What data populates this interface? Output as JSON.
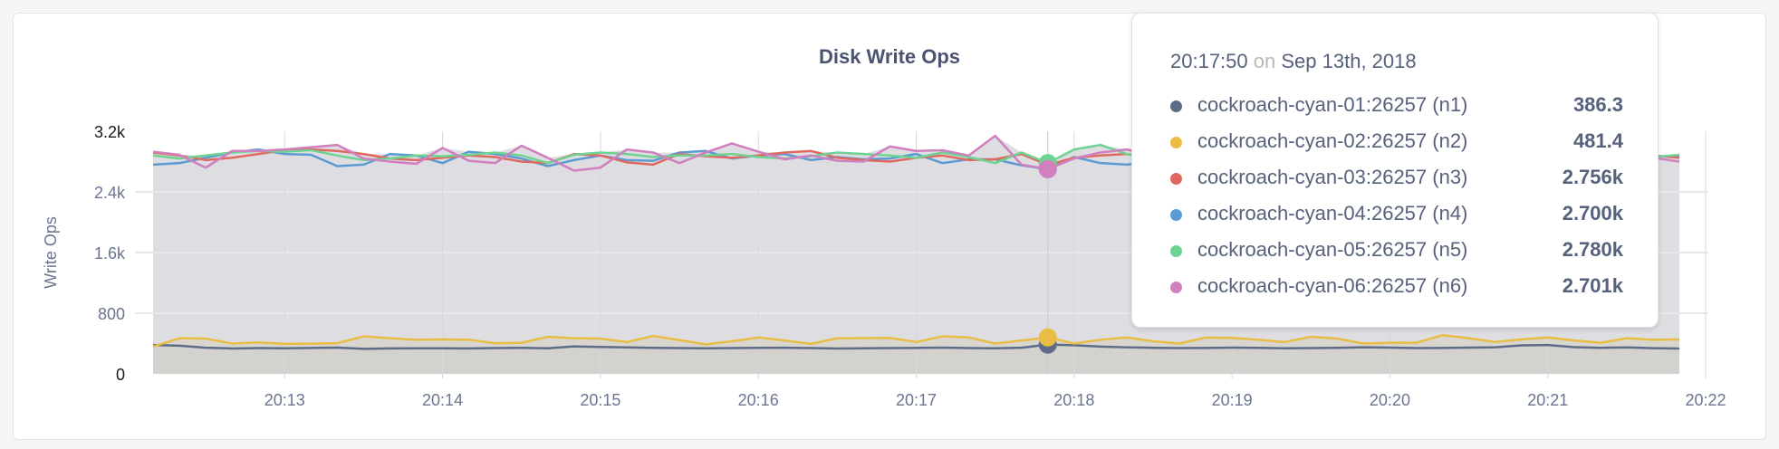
{
  "chart_data": {
    "type": "line",
    "title": "Disk Write Ops",
    "ylabel": "Write Ops",
    "xlabel": "",
    "ylim": [
      0,
      3200
    ],
    "yticks": [
      "0",
      "800",
      "1.6k",
      "2.4k",
      "3.2k"
    ],
    "ytick_values": [
      0,
      800,
      1600,
      2400,
      3200
    ],
    "xlim": [
      "20:12:10",
      "20:21:50"
    ],
    "xticks": [
      "20:13",
      "20:14",
      "20:15",
      "20:16",
      "20:17",
      "20:18",
      "20:19",
      "20:20",
      "20:21",
      "20:22"
    ],
    "grid": true,
    "x": [
      "20:12:10",
      "20:12:20",
      "20:12:30",
      "20:12:40",
      "20:12:50",
      "20:13:00",
      "20:13:10",
      "20:13:20",
      "20:13:30",
      "20:13:40",
      "20:13:50",
      "20:14:00",
      "20:14:10",
      "20:14:20",
      "20:14:30",
      "20:14:40",
      "20:14:50",
      "20:15:00",
      "20:15:10",
      "20:15:20",
      "20:15:30",
      "20:15:40",
      "20:15:50",
      "20:16:00",
      "20:16:10",
      "20:16:20",
      "20:16:30",
      "20:16:40",
      "20:16:50",
      "20:17:00",
      "20:17:10",
      "20:17:20",
      "20:17:30",
      "20:17:40",
      "20:17:50",
      "20:18:00",
      "20:18:10",
      "20:18:20",
      "20:18:30",
      "20:18:40",
      "20:18:50",
      "20:19:00",
      "20:19:10",
      "20:19:20",
      "20:19:30",
      "20:19:40",
      "20:19:50",
      "20:20:00",
      "20:20:10",
      "20:20:20",
      "20:20:30",
      "20:20:40",
      "20:20:50",
      "20:21:00",
      "20:21:10",
      "20:21:20",
      "20:21:30",
      "20:21:40",
      "20:21:50"
    ],
    "series": [
      {
        "name": "cockroach-cyan-01:26257 (n1)",
        "color": "#5f6c87",
        "values": [
          380,
          372,
          345,
          335,
          340,
          338,
          342,
          346,
          330,
          336,
          338,
          337,
          336,
          341,
          343,
          338,
          362,
          355,
          349,
          344,
          340,
          337,
          341,
          343,
          345,
          340,
          334,
          338,
          341,
          342,
          346,
          340,
          338,
          345,
          386,
          378,
          360,
          350,
          344,
          340,
          342,
          346,
          344,
          338,
          341,
          343,
          351,
          346,
          340,
          342,
          346,
          351,
          376,
          381,
          352,
          344,
          349,
          339,
          334
        ]
      },
      {
        "name": "cockroach-cyan-02:26257 (n2)",
        "color": "#e9bd43",
        "values": [
          360,
          470,
          465,
          400,
          415,
          395,
          398,
          405,
          495,
          470,
          450,
          455,
          450,
          405,
          410,
          490,
          470,
          465,
          420,
          500,
          445,
          390,
          430,
          480,
          440,
          395,
          470,
          472,
          475,
          420,
          495,
          480,
          400,
          440,
          481,
          400,
          450,
          480,
          430,
          400,
          480,
          475,
          450,
          420,
          490,
          465,
          400,
          410,
          410,
          510,
          470,
          420,
          455,
          480,
          440,
          410,
          470,
          450,
          455
        ]
      },
      {
        "name": "cockroach-cyan-03:26257 (n3)",
        "color": "#e0685f",
        "values": [
          2920,
          2880,
          2820,
          2850,
          2900,
          2950,
          2960,
          2940,
          2900,
          2840,
          2820,
          2850,
          2880,
          2860,
          2800,
          2780,
          2900,
          2880,
          2790,
          2760,
          2900,
          2870,
          2850,
          2880,
          2920,
          2940,
          2850,
          2820,
          2800,
          2850,
          2880,
          2820,
          2830,
          2900,
          2756,
          2850,
          2880,
          2900,
          2840,
          2880,
          2860,
          2900,
          2880,
          2850,
          2870,
          2880,
          2860,
          2840,
          2870,
          2880,
          2850,
          2880,
          2860,
          2870,
          2850,
          2880,
          2890,
          2880,
          2850
        ]
      },
      {
        "name": "cockroach-cyan-04:26257 (n4)",
        "color": "#5c9bd1",
        "values": [
          2760,
          2780,
          2850,
          2920,
          2960,
          2900,
          2890,
          2740,
          2760,
          2900,
          2880,
          2780,
          2930,
          2900,
          2840,
          2740,
          2820,
          2880,
          2820,
          2810,
          2920,
          2940,
          2840,
          2880,
          2900,
          2820,
          2860,
          2830,
          2840,
          2900,
          2780,
          2830,
          2830,
          2750,
          2700,
          2860,
          2780,
          2760,
          2800,
          2820,
          2880,
          2850,
          2790,
          2840,
          2870,
          2860,
          2820,
          2880,
          2840,
          2850,
          2860,
          2880,
          2840,
          2850,
          2870,
          2880,
          2870,
          2860,
          2880
        ]
      },
      {
        "name": "cockroach-cyan-05:26257 (n5)",
        "color": "#6ed392",
        "values": [
          2880,
          2840,
          2880,
          2920,
          2940,
          2930,
          2950,
          2880,
          2820,
          2840,
          2880,
          2870,
          2890,
          2920,
          2880,
          2780,
          2890,
          2920,
          2900,
          2860,
          2880,
          2880,
          2900,
          2860,
          2840,
          2870,
          2920,
          2900,
          2880,
          2850,
          2920,
          2860,
          2780,
          2920,
          2780,
          2960,
          3020,
          2900,
          2840,
          2880,
          2900,
          2880,
          2860,
          2890,
          2870,
          2880,
          2850,
          2890,
          2860,
          2880,
          2870,
          2890,
          2850,
          2860,
          2880,
          2870,
          2850,
          2860,
          2890
        ]
      },
      {
        "name": "cockroach-cyan-06:26257 (n6)",
        "color": "#d07fbf",
        "values": [
          2930,
          2890,
          2720,
          2940,
          2940,
          2960,
          2990,
          3020,
          2840,
          2800,
          2770,
          2980,
          2810,
          2780,
          3010,
          2850,
          2680,
          2720,
          2960,
          2920,
          2780,
          2920,
          3040,
          2930,
          2830,
          2880,
          2810,
          2800,
          3000,
          2940,
          2950,
          2880,
          3140,
          2760,
          2701,
          2840,
          2920,
          2960,
          2880,
          2900,
          2880,
          2920,
          2860,
          2840,
          2900,
          2880,
          2870,
          2900,
          2850,
          2880,
          2860,
          2900,
          2870,
          2880,
          2860,
          2890,
          2870,
          2850,
          2800
        ]
      }
    ],
    "tooltip": {
      "time": "20:17:50",
      "on": "on",
      "date": "Sep 13th, 2018",
      "rows": [
        {
          "name": "cockroach-cyan-01:26257 (n1)",
          "value": "386.3"
        },
        {
          "name": "cockroach-cyan-02:26257 (n2)",
          "value": "481.4"
        },
        {
          "name": "cockroach-cyan-03:26257 (n3)",
          "value": "2.756k"
        },
        {
          "name": "cockroach-cyan-04:26257 (n4)",
          "value": "2.700k"
        },
        {
          "name": "cockroach-cyan-05:26257 (n5)",
          "value": "2.780k"
        },
        {
          "name": "cockroach-cyan-06:26257 (n6)",
          "value": "2.701k"
        }
      ]
    }
  }
}
